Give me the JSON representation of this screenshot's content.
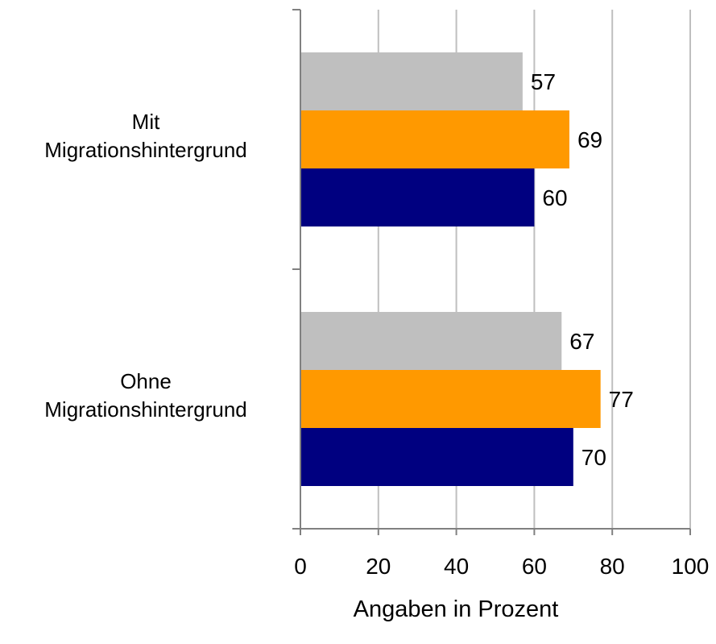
{
  "chart_data": {
    "type": "bar",
    "orientation": "horizontal",
    "categories": [
      {
        "line1": "Mit",
        "line2": "Migrationshintergrund"
      },
      {
        "line1": "Ohne",
        "line2": "Migrationshintergrund"
      }
    ],
    "series": [
      {
        "color": "#bfbfbf",
        "values": [
          57,
          67
        ]
      },
      {
        "color": "#ff9900",
        "values": [
          69,
          77
        ]
      },
      {
        "color": "#000080",
        "values": [
          60,
          70
        ]
      }
    ],
    "xlim": [
      0,
      100
    ],
    "xticks": [
      "0",
      "20",
      "40",
      "60",
      "80",
      "100"
    ],
    "xlabel": "Angaben in Prozent",
    "ylabel": "",
    "title": "",
    "grid": "vertical",
    "legend": "none",
    "data_labels": true
  }
}
